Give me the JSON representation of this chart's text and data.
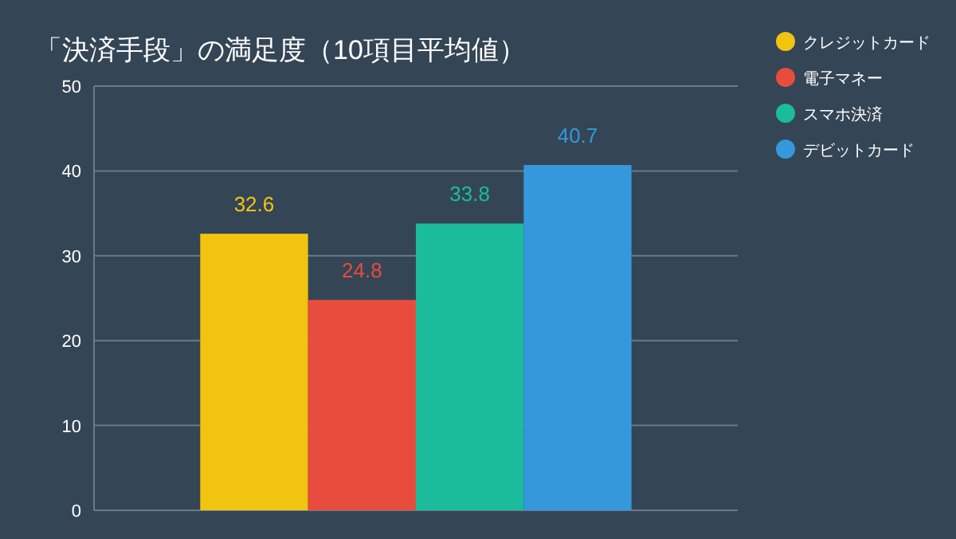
{
  "chart_data": {
    "type": "bar",
    "title": "「決済手段」の満足度（10項目平均値）",
    "categories": [
      null
    ],
    "series": [
      {
        "name": "クレジットカード",
        "color": "#f1c40f",
        "values": [
          32.6
        ]
      },
      {
        "name": "電子マネー",
        "color": "#e74c3c",
        "values": [
          24.8
        ]
      },
      {
        "name": "スマホ決済",
        "color": "#1abc9c",
        "values": [
          33.8
        ]
      },
      {
        "name": "デビットカード",
        "color": "#3498db",
        "values": [
          40.7
        ]
      }
    ],
    "ylim": [
      0,
      50
    ],
    "yticks": [
      0,
      10,
      20,
      30,
      40,
      50
    ],
    "grid": "y",
    "legend": "top right",
    "data_labels": true
  }
}
